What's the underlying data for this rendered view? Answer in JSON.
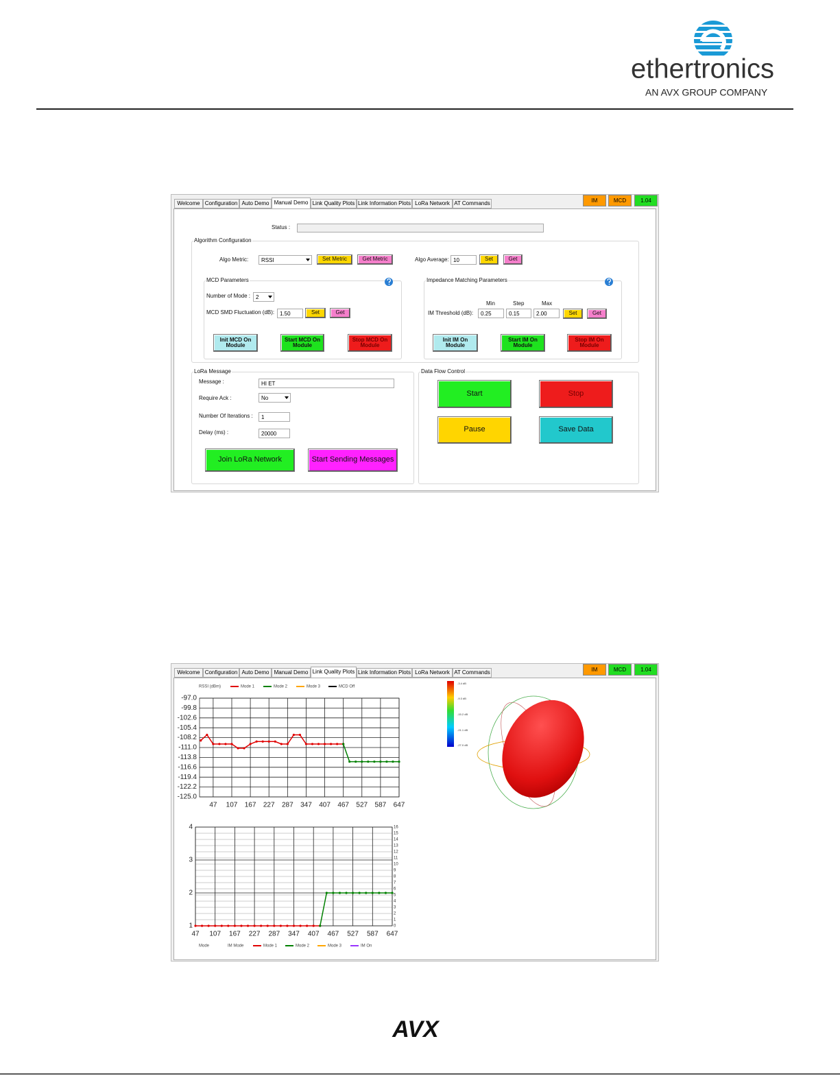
{
  "header": {
    "brand": "ethertronics",
    "tagline": "AN AVX GROUP COMPANY"
  },
  "screenshot1": {
    "tabs": [
      "Welcome",
      "Configuration",
      "Auto Demo",
      "Manual Demo",
      "Link Quality Plots",
      "Link Information Plots",
      "LoRa Network",
      "AT Commands"
    ],
    "active_tab": 3,
    "indicators": [
      {
        "label": "IM",
        "color": "#ff9900"
      },
      {
        "label": "MCD",
        "color": "#ff9900"
      },
      {
        "label": "1.04",
        "color": "#22dd22"
      }
    ],
    "status_label": "Status :",
    "algorithm": {
      "title": "Algorithm Configuration",
      "metric_label": "Algo Metric:",
      "metric_value": "RSSI",
      "set_metric": "Set Metric",
      "get_metric": "Get Metric",
      "average_label": "Algo Average:",
      "average_value": "10",
      "set": "Set",
      "get": "Get"
    },
    "mcd": {
      "title": "MCD Parameters",
      "modes_label": "Number of Mode :",
      "modes_value": "2",
      "fluct_label": "MCD SMD Fluctuation (dB):",
      "fluct_value": "1.50",
      "set": "Set",
      "get": "Get",
      "init": "Init MCD On Module",
      "start": "Start MCD On Module",
      "stop": "Stop MCD On Module"
    },
    "im": {
      "title": "Impedance Matching Parameters",
      "min_label": "Min",
      "step_label": "Step",
      "max_label": "Max",
      "threshold_label": "IM Threshold (dB):",
      "min_value": "0.25",
      "step_value": "0.15",
      "max_value": "2.00",
      "set": "Set",
      "get": "Get",
      "init": "Init IM On Module",
      "start": "Start IM On Module",
      "stop": "Stop IM On Module"
    },
    "lora": {
      "title": "LoRa Message",
      "message_label": "Message :",
      "message_value": "HI ET",
      "ack_label": "Require Ack :",
      "ack_value": "No",
      "iterations_label": "Number Of Iterations :",
      "iterations_value": "1",
      "delay_label": "Delay (ms) :",
      "delay_value": "20000",
      "join": "Join LoRa Network",
      "send": "Start Sending Messages"
    },
    "flow": {
      "title": "Data Flow Control",
      "start": "Start",
      "stop": "Stop",
      "pause": "Pause",
      "save": "Save Data"
    }
  },
  "screenshot2": {
    "tabs": [
      "Welcome",
      "Configuration",
      "Auto Demo",
      "Manual Demo",
      "Link Quality Plots",
      "Link Information Plots",
      "LoRa Network",
      "AT Commands"
    ],
    "active_tab": 4,
    "indicators": [
      {
        "label": "IM",
        "color": "#ff9900"
      },
      {
        "label": "MCD",
        "color": "#22dd22"
      },
      {
        "label": "1.04",
        "color": "#22dd22"
      }
    ],
    "rssi_chart": {
      "type": "line",
      "y_label": "RSSI (dBm)",
      "x": [
        7,
        27,
        47,
        67,
        87,
        107,
        127,
        147,
        167,
        187,
        207,
        227,
        247,
        267,
        287,
        307,
        327,
        347,
        367,
        387,
        407,
        427,
        447,
        467,
        487,
        507,
        527,
        547,
        567,
        587,
        607,
        627,
        647
      ],
      "series": [
        {
          "name": "Mode 1",
          "color": "#e00000",
          "values": [
            -109,
            -107.4,
            -110,
            -110,
            -110,
            -110,
            -111.2,
            -111.2,
            -110,
            -109.3,
            -109.3,
            -109.3,
            -109.3,
            -110,
            -110,
            -107.4,
            -107.4,
            -110,
            -110,
            -110,
            -110,
            -110,
            -110,
            -110,
            null,
            null,
            null,
            null,
            null,
            null,
            null,
            null,
            null
          ]
        },
        {
          "name": "Mode 2",
          "color": "#008000",
          "values": [
            null,
            null,
            null,
            null,
            null,
            null,
            null,
            null,
            null,
            null,
            null,
            null,
            null,
            null,
            null,
            null,
            null,
            null,
            null,
            null,
            null,
            null,
            null,
            -110,
            -115,
            -115,
            -115,
            -115,
            -115,
            -115,
            -115,
            -115,
            -115
          ]
        },
        {
          "name": "Mode 3",
          "color": "#ffa500",
          "values": [
            null,
            null,
            null,
            null,
            null,
            null,
            null,
            null,
            null,
            null,
            null,
            null,
            null,
            null,
            null,
            null,
            null,
            null,
            null,
            null,
            null,
            null,
            null,
            null,
            null,
            null,
            null,
            null,
            null,
            null,
            null,
            null,
            null
          ]
        },
        {
          "name": "MCD Off",
          "color": "#000000",
          "values": [
            null,
            null,
            null,
            null,
            null,
            null,
            null,
            null,
            null,
            null,
            null,
            null,
            null,
            null,
            null,
            null,
            null,
            null,
            null,
            null,
            null,
            null,
            null,
            null,
            null,
            null,
            null,
            null,
            null,
            null,
            null,
            null,
            null
          ]
        }
      ],
      "xlim": [
        3,
        647
      ],
      "xticks": [
        47,
        107,
        167,
        227,
        287,
        347,
        407,
        467,
        527,
        587,
        647
      ],
      "ylim": [
        -125,
        -97
      ],
      "yticks": [
        {
          "value": -97,
          "label": "-97.0"
        },
        -99.8,
        -102.6,
        -105.4,
        -108.2,
        {
          "value": -111,
          "label": "-111.0"
        },
        -113.8,
        -116.6,
        -119.4,
        -122.2,
        {
          "value": -125,
          "label": "-125.0"
        }
      ],
      "grid": true
    },
    "mode_chart": {
      "type": "line",
      "y_label": "Mode",
      "y2_label": "IM Mode",
      "x": [
        47,
        67,
        87,
        107,
        127,
        147,
        167,
        187,
        207,
        227,
        247,
        267,
        287,
        307,
        327,
        347,
        367,
        387,
        407,
        427,
        447,
        467,
        487,
        507,
        527,
        547,
        567,
        587,
        607,
        627,
        647
      ],
      "series": [
        {
          "name": "Mode 1",
          "color": "#e00000",
          "values": [
            1,
            1,
            1,
            1,
            1,
            1,
            1,
            1,
            1,
            1,
            1,
            1,
            1,
            1,
            1,
            1,
            1,
            1,
            1,
            1,
            null,
            null,
            null,
            null,
            null,
            null,
            null,
            null,
            null,
            null,
            null
          ]
        },
        {
          "name": "Mode 2",
          "color": "#008000",
          "values": [
            null,
            null,
            null,
            null,
            null,
            null,
            null,
            null,
            null,
            null,
            null,
            null,
            null,
            null,
            null,
            null,
            null,
            null,
            null,
            1,
            2,
            2,
            2,
            2,
            2,
            2,
            2,
            2,
            2,
            2,
            2
          ]
        },
        {
          "name": "Mode 3",
          "color": "#ffa500",
          "values": [
            null,
            null,
            null,
            null,
            null,
            null,
            null,
            null,
            null,
            null,
            null,
            null,
            null,
            null,
            null,
            null,
            null,
            null,
            null,
            null,
            null,
            null,
            null,
            null,
            null,
            null,
            null,
            null,
            null,
            null,
            null
          ]
        },
        {
          "name": "IM On",
          "color": "#9933ff",
          "values": [
            null,
            null,
            null,
            null,
            null,
            null,
            null,
            null,
            null,
            null,
            null,
            null,
            null,
            null,
            null,
            null,
            null,
            null,
            null,
            null,
            null,
            null,
            null,
            null,
            null,
            null,
            null,
            null,
            null,
            null,
            null
          ]
        }
      ],
      "xlim": [
        47,
        647
      ],
      "xticks": [
        47,
        107,
        167,
        227,
        287,
        347,
        407,
        467,
        527,
        587,
        647
      ],
      "ylim": [
        1,
        4
      ],
      "yticks": [
        1,
        2,
        3,
        4
      ],
      "y2lim": [
        0,
        16
      ],
      "y2ticks": [
        0,
        1,
        2,
        3,
        4,
        5,
        6,
        7,
        8,
        9,
        10,
        11,
        12,
        13,
        14,
        15,
        16
      ],
      "grid": true
    },
    "colorbar_labels": [
      "-3.4 dB",
      "-9.3 dB",
      "-15.2 dB",
      "-21.1 dB",
      "-27.0 dB"
    ]
  },
  "footer": {
    "logo": "AVX"
  }
}
